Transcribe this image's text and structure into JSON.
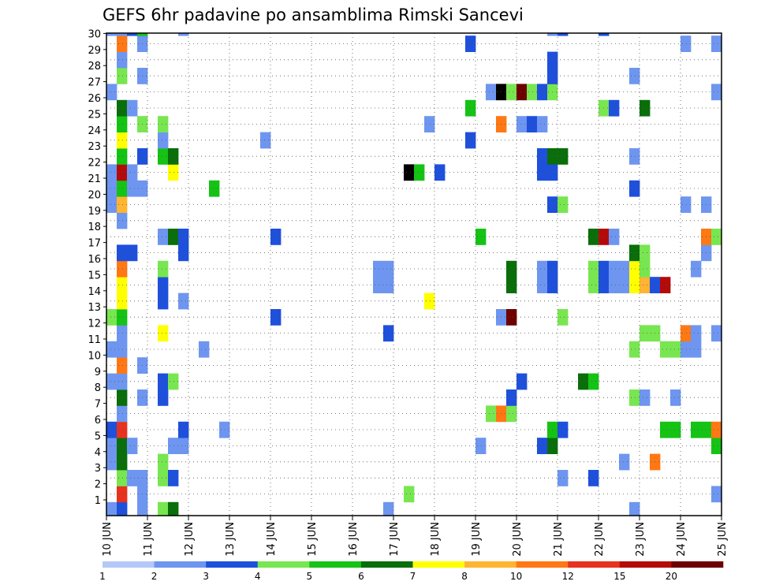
{
  "chart_data": {
    "type": "heatmap",
    "title": "GEFS 6hr padavine po ansamblima Rimski Sancevi",
    "x_unit": "6h steps",
    "x_ticks": [
      "10 JUN",
      "11 JUN",
      "12 JUN",
      "13 JUN",
      "14 JUN",
      "15 JUN",
      "16 JUN",
      "17 JUN",
      "18 JUN",
      "19 JUN",
      "20 JUN",
      "21 JUN",
      "22 JUN",
      "23 JUN",
      "24 JUN",
      "25 JUN"
    ],
    "y_ticks": [
      "1",
      "2",
      "3",
      "4",
      "5",
      "6",
      "7",
      "8",
      "9",
      "10",
      "11",
      "12",
      "13",
      "14",
      "15",
      "16",
      "17",
      "18",
      "19",
      "20",
      "21",
      "22",
      "23",
      "24",
      "25",
      "26",
      "27",
      "28",
      "29",
      "30"
    ],
    "xlim": [
      0,
      60
    ],
    "ylim": [
      0,
      30
    ],
    "colorbar": {
      "labels": [
        "1",
        "2",
        "3",
        "4",
        "5",
        "6",
        "7",
        "8",
        "10",
        "12",
        "15",
        "20"
      ],
      "colors": [
        "#b4c8f8",
        "#6e96f0",
        "#1e50dc",
        "#78e650",
        "#14c314",
        "#0a6e0a",
        "#ffff00",
        "#ffb432",
        "#ff7814",
        "#e6321e",
        "#b40a0a",
        "#6e0000"
      ]
    },
    "cells": [
      [
        0,
        0,
        1
      ],
      [
        1,
        0,
        2
      ],
      [
        3,
        0,
        1
      ],
      [
        5,
        0,
        3
      ],
      [
        6,
        0,
        5
      ],
      [
        27,
        0,
        1
      ],
      [
        51,
        0,
        1
      ],
      [
        1,
        1,
        9
      ],
      [
        3,
        1,
        1
      ],
      [
        29,
        1,
        3
      ],
      [
        59,
        1,
        1
      ],
      [
        1,
        2,
        3
      ],
      [
        2,
        2,
        1
      ],
      [
        3,
        2,
        1
      ],
      [
        5,
        2,
        3
      ],
      [
        6,
        2,
        2
      ],
      [
        44,
        2,
        1
      ],
      [
        47,
        2,
        2
      ],
      [
        0,
        3,
        1
      ],
      [
        1,
        3,
        5
      ],
      [
        5,
        3,
        3
      ],
      [
        50,
        3,
        1
      ],
      [
        53,
        3,
        8
      ],
      [
        0,
        4,
        1
      ],
      [
        1,
        4,
        5
      ],
      [
        2,
        4,
        1
      ],
      [
        6,
        4,
        1
      ],
      [
        7,
        4,
        1
      ],
      [
        36,
        4,
        1
      ],
      [
        42,
        4,
        2
      ],
      [
        43,
        4,
        5
      ],
      [
        59,
        4,
        4
      ],
      [
        0,
        5,
        2
      ],
      [
        1,
        5,
        9
      ],
      [
        7,
        5,
        2
      ],
      [
        11,
        5,
        1
      ],
      [
        43,
        5,
        4
      ],
      [
        44,
        5,
        2
      ],
      [
        54,
        5,
        4
      ],
      [
        55,
        5,
        4
      ],
      [
        57,
        5,
        4
      ],
      [
        58,
        5,
        4
      ],
      [
        59,
        5,
        8
      ],
      [
        1,
        6,
        1
      ],
      [
        37,
        6,
        3
      ],
      [
        38,
        6,
        8
      ],
      [
        39,
        6,
        3
      ],
      [
        1,
        7,
        5
      ],
      [
        3,
        7,
        1
      ],
      [
        5,
        7,
        2
      ],
      [
        39,
        7,
        2
      ],
      [
        51,
        7,
        3
      ],
      [
        52,
        7,
        1
      ],
      [
        55,
        7,
        1
      ],
      [
        0,
        8,
        1
      ],
      [
        1,
        8,
        1
      ],
      [
        5,
        8,
        2
      ],
      [
        6,
        8,
        3
      ],
      [
        40,
        8,
        2
      ],
      [
        46,
        8,
        5
      ],
      [
        47,
        8,
        4
      ],
      [
        1,
        9,
        8
      ],
      [
        3,
        9,
        1
      ],
      [
        0,
        10,
        1
      ],
      [
        1,
        10,
        1
      ],
      [
        9,
        10,
        1
      ],
      [
        51,
        10,
        3
      ],
      [
        54,
        10,
        3
      ],
      [
        55,
        10,
        3
      ],
      [
        56,
        10,
        1
      ],
      [
        57,
        10,
        1
      ],
      [
        1,
        11,
        1
      ],
      [
        5,
        11,
        6
      ],
      [
        27,
        11,
        2
      ],
      [
        52,
        11,
        3
      ],
      [
        53,
        11,
        3
      ],
      [
        56,
        11,
        8
      ],
      [
        57,
        11,
        1
      ],
      [
        59,
        11,
        1
      ],
      [
        0,
        12,
        3
      ],
      [
        1,
        12,
        4
      ],
      [
        16,
        12,
        2
      ],
      [
        38,
        12,
        1
      ],
      [
        39,
        12,
        11
      ],
      [
        44,
        12,
        3
      ],
      [
        1,
        13,
        6
      ],
      [
        5,
        13,
        2
      ],
      [
        7,
        13,
        1
      ],
      [
        31,
        13,
        6
      ],
      [
        1,
        14,
        6
      ],
      [
        5,
        14,
        2
      ],
      [
        26,
        14,
        1
      ],
      [
        27,
        14,
        1
      ],
      [
        39,
        14,
        5
      ],
      [
        42,
        14,
        1
      ],
      [
        43,
        14,
        2
      ],
      [
        47,
        14,
        3
      ],
      [
        48,
        14,
        2
      ],
      [
        49,
        14,
        1
      ],
      [
        50,
        14,
        1
      ],
      [
        51,
        14,
        6
      ],
      [
        52,
        14,
        7
      ],
      [
        53,
        14,
        2
      ],
      [
        54,
        14,
        10
      ],
      [
        1,
        15,
        8
      ],
      [
        5,
        15,
        3
      ],
      [
        26,
        15,
        1
      ],
      [
        27,
        15,
        1
      ],
      [
        39,
        15,
        5
      ],
      [
        42,
        15,
        1
      ],
      [
        43,
        15,
        2
      ],
      [
        47,
        15,
        3
      ],
      [
        48,
        15,
        2
      ],
      [
        49,
        15,
        1
      ],
      [
        50,
        15,
        1
      ],
      [
        51,
        15,
        6
      ],
      [
        52,
        15,
        3
      ],
      [
        57,
        15,
        1
      ],
      [
        1,
        16,
        2
      ],
      [
        2,
        16,
        2
      ],
      [
        7,
        16,
        2
      ],
      [
        51,
        16,
        5
      ],
      [
        52,
        16,
        3
      ],
      [
        58,
        16,
        1
      ],
      [
        5,
        17,
        1
      ],
      [
        6,
        17,
        5
      ],
      [
        7,
        17,
        2
      ],
      [
        16,
        17,
        2
      ],
      [
        36,
        17,
        4
      ],
      [
        47,
        17,
        5
      ],
      [
        48,
        17,
        10
      ],
      [
        49,
        17,
        1
      ],
      [
        58,
        17,
        8
      ],
      [
        59,
        17,
        3
      ],
      [
        1,
        18,
        1
      ],
      [
        0,
        19,
        1
      ],
      [
        1,
        19,
        7
      ],
      [
        43,
        19,
        2
      ],
      [
        44,
        19,
        3
      ],
      [
        56,
        19,
        1
      ],
      [
        58,
        19,
        1
      ],
      [
        0,
        20,
        1
      ],
      [
        1,
        20,
        4
      ],
      [
        2,
        20,
        1
      ],
      [
        3,
        20,
        1
      ],
      [
        10,
        20,
        4
      ],
      [
        51,
        20,
        2
      ],
      [
        0,
        21,
        1
      ],
      [
        1,
        21,
        10
      ],
      [
        2,
        21,
        1
      ],
      [
        6,
        21,
        6
      ],
      [
        29,
        21,
        12
      ],
      [
        30,
        21,
        4
      ],
      [
        32,
        21,
        2
      ],
      [
        42,
        21,
        2
      ],
      [
        43,
        21,
        2
      ],
      [
        1,
        22,
        4
      ],
      [
        3,
        22,
        2
      ],
      [
        5,
        22,
        4
      ],
      [
        6,
        22,
        5
      ],
      [
        42,
        22,
        2
      ],
      [
        43,
        22,
        5
      ],
      [
        44,
        22,
        5
      ],
      [
        51,
        22,
        1
      ],
      [
        1,
        23,
        6
      ],
      [
        5,
        23,
        1
      ],
      [
        15,
        23,
        1
      ],
      [
        35,
        23,
        2
      ],
      [
        1,
        24,
        4
      ],
      [
        3,
        24,
        3
      ],
      [
        5,
        24,
        3
      ],
      [
        31,
        24,
        1
      ],
      [
        38,
        24,
        8
      ],
      [
        40,
        24,
        1
      ],
      [
        41,
        24,
        2
      ],
      [
        42,
        24,
        1
      ],
      [
        1,
        25,
        5
      ],
      [
        2,
        25,
        1
      ],
      [
        35,
        25,
        4
      ],
      [
        48,
        25,
        3
      ],
      [
        49,
        25,
        2
      ],
      [
        52,
        25,
        5
      ],
      [
        0,
        26,
        1
      ],
      [
        37,
        26,
        1
      ],
      [
        38,
        26,
        12
      ],
      [
        39,
        26,
        3
      ],
      [
        40,
        26,
        11
      ],
      [
        41,
        26,
        3
      ],
      [
        42,
        26,
        2
      ],
      [
        43,
        26,
        3
      ],
      [
        59,
        26,
        1
      ],
      [
        1,
        27,
        3
      ],
      [
        3,
        27,
        1
      ],
      [
        43,
        27,
        2
      ],
      [
        51,
        27,
        1
      ],
      [
        1,
        28,
        1
      ],
      [
        43,
        28,
        2
      ],
      [
        1,
        29,
        8
      ],
      [
        3,
        29,
        1
      ],
      [
        35,
        29,
        2
      ],
      [
        56,
        29,
        1
      ],
      [
        59,
        29,
        1
      ],
      [
        0,
        30,
        1
      ],
      [
        1,
        30,
        1
      ],
      [
        2,
        30,
        2
      ],
      [
        3,
        30,
        4
      ],
      [
        7,
        30,
        1
      ],
      [
        43,
        30,
        1
      ],
      [
        44,
        30,
        2
      ],
      [
        48,
        30,
        2
      ]
    ]
  }
}
